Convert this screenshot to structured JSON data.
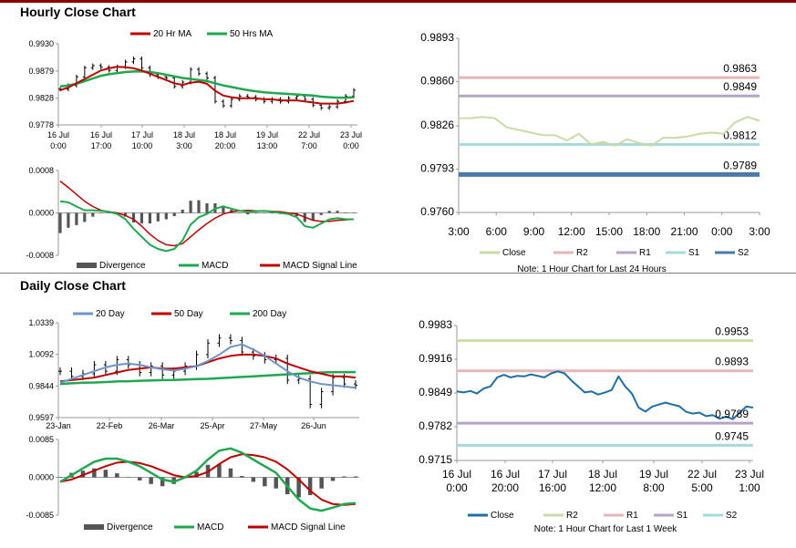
{
  "theme": {
    "accent": "#8b0000",
    "divider": "#808080"
  },
  "sections": {
    "hourly_title": "Hourly Close Chart",
    "daily_title": "Daily Close Chart"
  },
  "chart_data": [
    {
      "id": "hourly-price",
      "type": "line",
      "legend": [
        {
          "name": "20 Hr MA",
          "color": "#c00000"
        },
        {
          "name": "50 Hrs MA",
          "color": "#1fa84f"
        }
      ],
      "ylim": [
        0.9778,
        0.993
      ],
      "yticks": [
        "0.9930",
        "0.9879",
        "0.9828",
        "0.9778"
      ],
      "xticks": [
        {
          "l1": "16 Jul",
          "l2": "0:00"
        },
        {
          "l1": "16 Jul",
          "l2": "17:00"
        },
        {
          "l1": "17 Jul",
          "l2": "10:00"
        },
        {
          "l1": "18 Jul",
          "l2": "3:00"
        },
        {
          "l1": "18 Jul",
          "l2": "20:00"
        },
        {
          "l1": "19 Jul",
          "l2": "13:00"
        },
        {
          "l1": "22 Jul",
          "l2": "7:00"
        },
        {
          "l1": "23 Jul",
          "l2": "0:00"
        }
      ],
      "close": [
        0.9845,
        0.9852,
        0.9868,
        0.9885,
        0.9889,
        0.9886,
        0.988,
        0.9887,
        0.9896,
        0.9902,
        0.9885,
        0.9872,
        0.9868,
        0.9866,
        0.985,
        0.9858,
        0.9882,
        0.9874,
        0.9866,
        0.9822,
        0.9814,
        0.9826,
        0.9832,
        0.983,
        0.9826,
        0.9822,
        0.9826,
        0.9822,
        0.9828,
        0.9832,
        0.9826,
        0.9815,
        0.981,
        0.9812,
        0.9822,
        0.9832,
        0.9843
      ],
      "ma20": [
        0.9843,
        0.9848,
        0.9856,
        0.9864,
        0.9872,
        0.988,
        0.9884,
        0.9887,
        0.9886,
        0.9884,
        0.988,
        0.9874,
        0.9868,
        0.9862,
        0.9856,
        0.9853,
        0.9857,
        0.9859,
        0.9855,
        0.9842,
        0.9833,
        0.983,
        0.9828,
        0.9828,
        0.9828,
        0.9826,
        0.9826,
        0.9824,
        0.9824,
        0.9824,
        0.9822,
        0.982,
        0.9818,
        0.9818,
        0.9818,
        0.982,
        0.9823
      ],
      "ma50": [
        0.985,
        0.9852,
        0.9855,
        0.986,
        0.9865,
        0.987,
        0.9873,
        0.9875,
        0.9877,
        0.9878,
        0.9878,
        0.9877,
        0.9875,
        0.9872,
        0.9869,
        0.9866,
        0.9864,
        0.9862,
        0.986,
        0.9856,
        0.9852,
        0.9849,
        0.9846,
        0.9843,
        0.9841,
        0.9839,
        0.9838,
        0.9837,
        0.9836,
        0.9835,
        0.9834,
        0.9833,
        0.9831,
        0.983,
        0.9829,
        0.9829,
        0.983
      ]
    },
    {
      "id": "hourly-macd",
      "type": "line",
      "legend": [
        {
          "name": "Divergence",
          "color": "#555555"
        },
        {
          "name": "MACD",
          "color": "#1fa84f"
        },
        {
          "name": "MACD Signal Line",
          "color": "#c00000"
        }
      ],
      "ylim": [
        -0.0008,
        0.0008
      ],
      "yticks": [
        "0.0008",
        "0.0000",
        "-0.0008"
      ],
      "macd": [
        0.00022,
        0.0002,
        0.00012,
        5e-05,
        5e-05,
        4e-05,
        2e-05,
        -2e-05,
        -0.00012,
        -0.0003,
        -0.00045,
        -0.0006,
        -0.00068,
        -0.00072,
        -0.00068,
        -0.00052,
        -0.00022,
        -8e-05,
        -2e-05,
        8e-05,
        0.00012,
        8e-05,
        4e-05,
        2e-05,
        3e-05,
        4e-05,
        2e-05,
        0.0,
        -2e-05,
        -8e-05,
        -0.00025,
        -0.00028,
        -0.0002,
        -0.00012,
        -0.0001,
        -0.00012,
        -0.00012
      ],
      "signal": [
        0.0006,
        0.00048,
        0.00035,
        0.00022,
        0.00012,
        5e-05,
        2e-05,
        0.0,
        -5e-05,
        -0.00012,
        -0.00025,
        -0.0004,
        -0.00052,
        -0.0006,
        -0.00062,
        -0.00058,
        -0.00045,
        -0.00032,
        -0.0002,
        -0.0001,
        -2e-05,
        2e-05,
        4e-05,
        5e-05,
        4e-05,
        4e-05,
        3e-05,
        2e-05,
        0.0,
        -2e-05,
        -8e-05,
        -0.00014,
        -0.00016,
        -0.00016,
        -0.00014,
        -0.00013,
        -0.00012
      ]
    },
    {
      "id": "hourly-levels",
      "type": "line",
      "ylim": [
        0.976,
        0.9893
      ],
      "yticks": [
        "0.9893",
        "0.9860",
        "0.9826",
        "0.9793",
        "0.9760"
      ],
      "xticks": [
        "3:00",
        "6:00",
        "9:00",
        "12:00",
        "15:00",
        "18:00",
        "21:00",
        "0:00",
        "3:00"
      ],
      "close": [
        0.9832,
        0.9832,
        0.9833,
        0.9832,
        0.9825,
        0.9823,
        0.9821,
        0.9819,
        0.9819,
        0.9815,
        0.982,
        0.9812,
        0.9814,
        0.9811,
        0.9816,
        0.9813,
        0.9811,
        0.9817,
        0.9817,
        0.9818,
        0.982,
        0.9821,
        0.982,
        0.9829,
        0.9833,
        0.983
      ],
      "levels": [
        {
          "name": "R2",
          "value": 0.9863,
          "label": "0.9863",
          "color": "#e6b6b6"
        },
        {
          "name": "R1",
          "value": 0.9849,
          "label": "0.9849",
          "color": "#b4a2c8"
        },
        {
          "name": "S1",
          "value": 0.9812,
          "label": "0.9812",
          "color": "#a6d8dc"
        },
        {
          "name": "S2",
          "value": 0.9789,
          "label": "0.9789",
          "color": "#4a7aaa"
        }
      ],
      "legend": [
        {
          "name": "Close",
          "color": "#c9dba6"
        },
        {
          "name": "R2",
          "color": "#e6b6b6"
        },
        {
          "name": "R1",
          "color": "#b4a2c8"
        },
        {
          "name": "S1",
          "color": "#a6d8dc"
        },
        {
          "name": "S2",
          "color": "#4a7aaa"
        }
      ],
      "note": "Note: 1 Hour Chart for Last 24 Hours"
    },
    {
      "id": "daily-price",
      "type": "line",
      "legend": [
        {
          "name": "20 Day",
          "color": "#6e94c8"
        },
        {
          "name": "50 Day",
          "color": "#c00000"
        },
        {
          "name": "200 Day",
          "color": "#1fa84f"
        }
      ],
      "ylim": [
        0.9597,
        1.0339
      ],
      "yticks": [
        "1.0339",
        "1.0092",
        "0.9844",
        "0.9597"
      ],
      "xticks": [
        "23-Jan",
        "22-Feb",
        "26-Mar",
        "25-Apr",
        "27-May",
        "26-Jun"
      ],
      "close": [
        0.996,
        0.992,
        0.994,
        1.001,
        0.996,
        1.005,
        1.001,
        0.995,
        1.0,
        0.993,
        0.996,
        1.0,
        1.009,
        1.018,
        1.022,
        1.02,
        1.011,
        1.008,
        1.005,
        1.006,
        0.989,
        0.99,
        0.97,
        0.98,
        0.991,
        0.986,
        0.985
      ],
      "ma20": [
        0.987,
        0.99,
        0.993,
        0.996,
        0.999,
        1.001,
        1.002,
        1.001,
        0.999,
        0.9975,
        0.9965,
        0.998,
        1.0,
        1.004,
        1.009,
        1.015,
        1.017,
        1.013,
        1.008,
        1.002,
        0.996,
        0.991,
        0.988,
        0.986,
        0.985,
        0.984,
        0.983
      ],
      "ma50": [
        0.988,
        0.989,
        0.99,
        0.991,
        0.993,
        0.995,
        0.997,
        0.998,
        0.999,
        0.998,
        0.998,
        0.999,
        1.0,
        1.003,
        1.006,
        1.008,
        1.009,
        1.009,
        1.008,
        1.006,
        1.002,
        0.999,
        0.996,
        0.994,
        0.992,
        0.992,
        0.991
      ],
      "ma200": [
        0.986,
        0.9865,
        0.987,
        0.9872,
        0.9875,
        0.988,
        0.9882,
        0.9885,
        0.9888,
        0.989,
        0.9892,
        0.9895,
        0.9898,
        0.99,
        0.9905,
        0.991,
        0.9915,
        0.992,
        0.9925,
        0.993,
        0.9935,
        0.994,
        0.9945,
        0.995,
        0.9953,
        0.9953,
        0.9953
      ]
    },
    {
      "id": "daily-macd",
      "type": "line",
      "legend": [
        {
          "name": "Divergence",
          "color": "#555555"
        },
        {
          "name": "MACD",
          "color": "#1fa84f"
        },
        {
          "name": "MACD Signal Line",
          "color": "#c00000"
        }
      ],
      "ylim": [
        -0.0085,
        0.0085
      ],
      "yticks": [
        "0.0085",
        "0.0000",
        "-0.0085"
      ],
      "macd": [
        -0.001,
        0.0005,
        0.002,
        0.0035,
        0.0042,
        0.0042,
        0.0035,
        0.0025,
        0.001,
        -0.0005,
        -0.001,
        0.0,
        0.0015,
        0.004,
        0.006,
        0.0065,
        0.0055,
        0.004,
        0.0025,
        0.001,
        -0.002,
        -0.005,
        -0.007,
        -0.0075,
        -0.0068,
        -0.006,
        -0.0058
      ],
      "signal": [
        -0.001,
        -0.0005,
        0.0005,
        0.0015,
        0.0025,
        0.0033,
        0.0035,
        0.0032,
        0.0025,
        0.0015,
        0.0005,
        0.0,
        0.0003,
        0.0012,
        0.003,
        0.0045,
        0.0052,
        0.005,
        0.0045,
        0.0035,
        0.0018,
        -0.0005,
        -0.003,
        -0.005,
        -0.006,
        -0.0062,
        -0.006
      ]
    },
    {
      "id": "daily-levels",
      "type": "line",
      "ylim": [
        0.9715,
        0.9983
      ],
      "yticks": [
        "0.9983",
        "0.9916",
        "0.9849",
        "0.9782",
        "0.9715"
      ],
      "xticks": [
        {
          "l1": "16 Jul",
          "l2": "0:00"
        },
        {
          "l1": "16 Jul",
          "l2": "20:00"
        },
        {
          "l1": "17 Jul",
          "l2": "16:00"
        },
        {
          "l1": "18 Jul",
          "l2": "12:00"
        },
        {
          "l1": "19 Jul",
          "l2": "8:00"
        },
        {
          "l1": "22 Jul",
          "l2": "5:00"
        },
        {
          "l1": "23 Jul",
          "l2": "1:00"
        }
      ],
      "close": [
        0.9852,
        0.985,
        0.9853,
        0.9848,
        0.9858,
        0.9862,
        0.988,
        0.9885,
        0.988,
        0.9883,
        0.9882,
        0.9886,
        0.9883,
        0.988,
        0.9888,
        0.9892,
        0.9888,
        0.9874,
        0.9862,
        0.985,
        0.9852,
        0.9846,
        0.985,
        0.9855,
        0.9882,
        0.9862,
        0.9848,
        0.982,
        0.9812,
        0.9822,
        0.9826,
        0.983,
        0.9826,
        0.9823,
        0.9812,
        0.9808,
        0.981,
        0.9803,
        0.9805,
        0.9798,
        0.9802,
        0.9797,
        0.981,
        0.9822,
        0.982
      ],
      "levels": [
        {
          "name": "R2",
          "value": 0.9953,
          "label": "0.9953",
          "color": "#c9dba6"
        },
        {
          "name": "R1",
          "value": 0.9893,
          "label": "0.9893",
          "color": "#e6b6b6"
        },
        {
          "name": "S1",
          "value": 0.9789,
          "label": "0.9789",
          "color": "#b4a2c8"
        },
        {
          "name": "S2",
          "value": 0.9745,
          "label": "0.9745",
          "color": "#a6d8dc"
        }
      ],
      "legend": [
        {
          "name": "Close",
          "color": "#1f6ea8"
        },
        {
          "name": "R2",
          "color": "#c9dba6"
        },
        {
          "name": "R1",
          "color": "#e6b6b6"
        },
        {
          "name": "S1",
          "color": "#b4a2c8"
        },
        {
          "name": "S2",
          "color": "#a6d8dc"
        }
      ],
      "note": "Note: 1 Hour Chart for Last 1 Week"
    }
  ]
}
